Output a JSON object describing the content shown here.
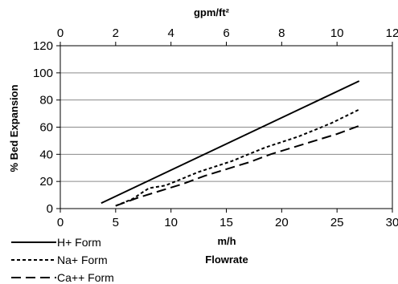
{
  "chart_data": {
    "type": "line",
    "title": "",
    "xlabel": "m/h",
    "xlabel2": "Flowrate",
    "ylabel": "% Bed Expansion",
    "top_axis_label": "gpm/ft²",
    "xlim": [
      0,
      30
    ],
    "ylim": [
      0,
      120
    ],
    "top_xlim": [
      0,
      12
    ],
    "x_ticks": [
      "0",
      "5",
      "10",
      "15",
      "20",
      "25",
      "30"
    ],
    "y_ticks": [
      "0",
      "20",
      "40",
      "60",
      "80",
      "100",
      "120"
    ],
    "top_ticks": [
      "0",
      "2",
      "4",
      "6",
      "8",
      "10",
      "12"
    ],
    "grid": "horizontal",
    "legend_position": "bottom-left",
    "series": [
      {
        "name": "H+ Form",
        "style": "solid",
        "x": [
          3.7,
          27.0
        ],
        "y": [
          4,
          94
        ]
      },
      {
        "name": "Na+ Form",
        "style": "dotted",
        "x": [
          5.0,
          6.5,
          8.0,
          9.5,
          11.0,
          12.5,
          14.0,
          15.5,
          17.0,
          18.5,
          20.0,
          21.5,
          23.0,
          24.5,
          26.0,
          27.0
        ],
        "y": [
          2,
          7,
          15,
          17,
          22,
          27,
          31,
          35,
          40,
          45,
          49,
          53,
          58,
          63,
          69,
          73
        ]
      },
      {
        "name": "Ca++ Form",
        "style": "dashed",
        "x": [
          5.0,
          7.0,
          9.0,
          11.0,
          13.0,
          15.0,
          17.0,
          19.0,
          21.0,
          23.0,
          25.0,
          27.0
        ],
        "y": [
          2,
          8,
          13,
          18,
          24,
          29,
          34,
          40,
          45,
          50,
          55,
          61
        ]
      }
    ]
  }
}
